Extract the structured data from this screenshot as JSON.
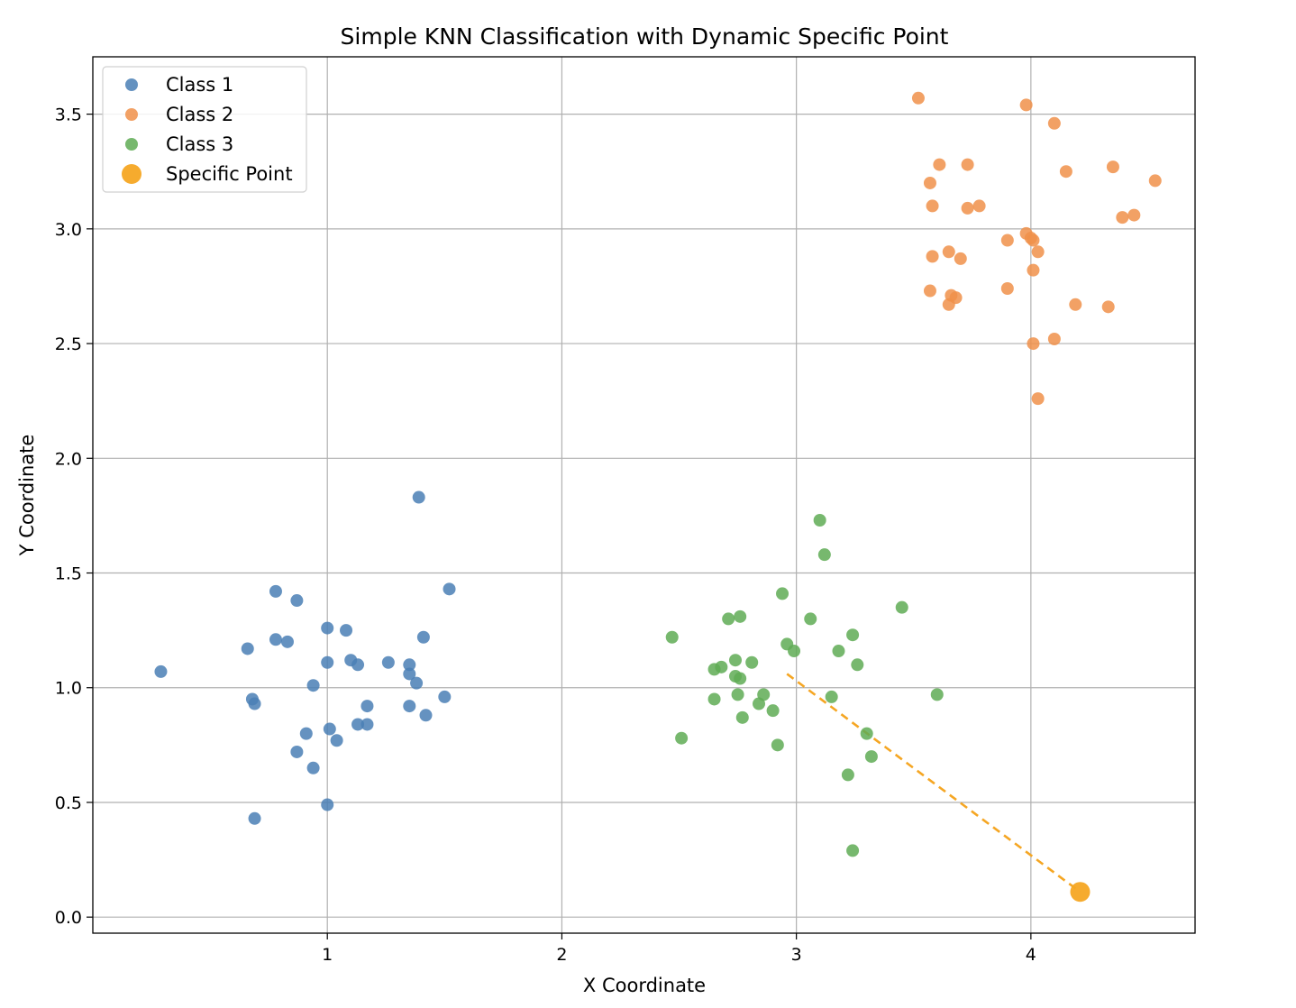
{
  "chart_data": {
    "type": "scatter",
    "title": "Simple KNN Classification with Dynamic Specific Point",
    "xlabel": "X Coordinate",
    "ylabel": "Y Coordinate",
    "xlim": [
      0.0,
      4.7
    ],
    "ylim": [
      -0.07,
      3.75
    ],
    "xticks": [
      1,
      2,
      3,
      4
    ],
    "xtick_labels": [
      "1",
      "2",
      "3",
      "4"
    ],
    "yticks": [
      0.0,
      0.5,
      1.0,
      1.5,
      2.0,
      2.5,
      3.0,
      3.5
    ],
    "ytick_labels": [
      "0.0",
      "0.5",
      "1.0",
      "1.5",
      "2.0",
      "2.5",
      "3.0",
      "3.5"
    ],
    "grid": true,
    "legend": "upper-left",
    "series": [
      {
        "name": "Class 1",
        "color": "#4a7fb5",
        "points": [
          [
            0.29,
            1.07
          ],
          [
            0.66,
            1.17
          ],
          [
            0.68,
            0.95
          ],
          [
            0.69,
            0.93
          ],
          [
            0.69,
            0.43
          ],
          [
            0.78,
            1.42
          ],
          [
            0.78,
            1.21
          ],
          [
            0.83,
            1.2
          ],
          [
            0.87,
            1.38
          ],
          [
            0.87,
            0.72
          ],
          [
            0.91,
            0.8
          ],
          [
            0.94,
            1.01
          ],
          [
            0.94,
            0.65
          ],
          [
            1.0,
            1.26
          ],
          [
            1.0,
            1.11
          ],
          [
            1.0,
            0.49
          ],
          [
            1.01,
            0.82
          ],
          [
            1.04,
            0.77
          ],
          [
            1.08,
            1.25
          ],
          [
            1.1,
            1.12
          ],
          [
            1.13,
            1.1
          ],
          [
            1.13,
            0.84
          ],
          [
            1.17,
            0.92
          ],
          [
            1.17,
            0.84
          ],
          [
            1.26,
            1.11
          ],
          [
            1.35,
            1.1
          ],
          [
            1.35,
            1.06
          ],
          [
            1.35,
            0.92
          ],
          [
            1.38,
            1.02
          ],
          [
            1.39,
            1.83
          ],
          [
            1.41,
            1.22
          ],
          [
            1.42,
            0.88
          ],
          [
            1.5,
            0.96
          ],
          [
            1.52,
            1.43
          ]
        ]
      },
      {
        "name": "Class 2",
        "color": "#f0914a",
        "points": [
          [
            3.52,
            3.57
          ],
          [
            3.57,
            3.2
          ],
          [
            3.58,
            3.1
          ],
          [
            3.58,
            2.88
          ],
          [
            3.57,
            2.73
          ],
          [
            3.61,
            3.28
          ],
          [
            3.65,
            2.9
          ],
          [
            3.65,
            2.67
          ],
          [
            3.66,
            2.71
          ],
          [
            3.68,
            2.7
          ],
          [
            3.7,
            2.87
          ],
          [
            3.73,
            3.28
          ],
          [
            3.73,
            3.09
          ],
          [
            3.78,
            3.1
          ],
          [
            3.9,
            2.95
          ],
          [
            3.9,
            2.74
          ],
          [
            3.98,
            3.54
          ],
          [
            3.98,
            2.98
          ],
          [
            4.0,
            2.96
          ],
          [
            4.01,
            2.95
          ],
          [
            4.01,
            2.82
          ],
          [
            4.01,
            2.5
          ],
          [
            4.03,
            2.9
          ],
          [
            4.03,
            2.26
          ],
          [
            4.1,
            3.46
          ],
          [
            4.1,
            2.52
          ],
          [
            4.15,
            3.25
          ],
          [
            4.19,
            2.67
          ],
          [
            4.33,
            2.66
          ],
          [
            4.35,
            3.27
          ],
          [
            4.39,
            3.05
          ],
          [
            4.44,
            3.06
          ],
          [
            4.53,
            3.21
          ]
        ]
      },
      {
        "name": "Class 3",
        "color": "#5fab55",
        "points": [
          [
            2.47,
            1.22
          ],
          [
            2.51,
            0.78
          ],
          [
            2.65,
            1.08
          ],
          [
            2.65,
            0.95
          ],
          [
            2.68,
            1.09
          ],
          [
            2.71,
            1.3
          ],
          [
            2.74,
            1.12
          ],
          [
            2.74,
            1.05
          ],
          [
            2.75,
            0.97
          ],
          [
            2.76,
            1.31
          ],
          [
            2.76,
            1.04
          ],
          [
            2.77,
            0.87
          ],
          [
            2.81,
            1.11
          ],
          [
            2.84,
            0.93
          ],
          [
            2.86,
            0.97
          ],
          [
            2.9,
            0.9
          ],
          [
            2.92,
            0.75
          ],
          [
            2.94,
            1.41
          ],
          [
            2.96,
            1.19
          ],
          [
            2.99,
            1.16
          ],
          [
            3.06,
            1.3
          ],
          [
            3.1,
            1.73
          ],
          [
            3.12,
            1.58
          ],
          [
            3.15,
            0.96
          ],
          [
            3.18,
            1.16
          ],
          [
            3.22,
            0.62
          ],
          [
            3.24,
            1.23
          ],
          [
            3.24,
            0.29
          ],
          [
            3.26,
            1.1
          ],
          [
            3.3,
            0.8
          ],
          [
            3.32,
            0.7
          ],
          [
            3.45,
            1.35
          ],
          [
            3.6,
            0.97
          ]
        ]
      },
      {
        "name": "Specific Point",
        "color": "#f5a623",
        "points": [
          [
            4.21,
            0.11
          ]
        ]
      }
    ],
    "annotations": [
      {
        "type": "dashed-line",
        "color": "#f5a623",
        "from": [
          2.96,
          1.06
        ],
        "to": [
          4.21,
          0.11
        ]
      }
    ]
  }
}
